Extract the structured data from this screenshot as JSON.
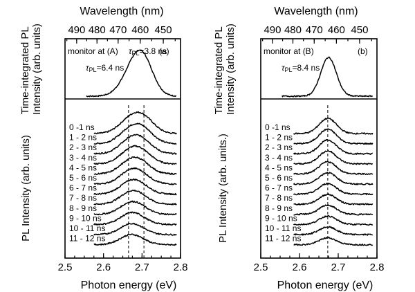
{
  "chart_data": [
    {
      "type": "line",
      "panel_label": "(a)",
      "top_axis_label": "Wavelength (nm)",
      "top_ticks": [
        490,
        480,
        470,
        460,
        450
      ],
      "bottom_axis_label": "Photon energy (eV)",
      "bottom_ticks": [
        2.5,
        2.6,
        2.7,
        2.8
      ],
      "xlim": [
        2.5,
        2.8
      ],
      "upper": {
        "ylabel": "Time-integrated PL Intensity (arb. units)",
        "monitor_label": "monitor at (A)",
        "annotations": [
          {
            "text": "τPL=3.8 ns",
            "tau": "τ",
            "sub": "PL",
            "rest": "=3.8 ns"
          },
          {
            "text": "τPL=6.4 ns",
            "tau": "τ",
            "sub": "PL",
            "rest": "=6.4 ns"
          }
        ],
        "peaks": [
          {
            "center": 2.675,
            "amp": 0.55,
            "width": 0.03
          },
          {
            "center": 2.703,
            "amp": 0.78,
            "width": 0.027
          }
        ]
      },
      "lower": {
        "ylabel": "PL Intensity (arb. units)",
        "dashed_lines_x": [
          2.665,
          2.705
        ],
        "time_windows": [
          "0 -1 ns",
          "1 - 2 ns",
          "2 - 3 ns",
          "3 - 4 ns",
          "4 - 5 ns",
          "5 - 6 ns",
          "6 - 7 ns",
          "7 - 8 ns",
          "8 - 9 ns",
          "9 - 10 ns",
          "10 - 11 ns",
          "11 - 12 ns"
        ]
      }
    },
    {
      "type": "line",
      "panel_label": "(b)",
      "top_axis_label": "Wavelength (nm)",
      "top_ticks": [
        490,
        480,
        470,
        460,
        450
      ],
      "bottom_axis_label": "Photon energy (eV)",
      "bottom_ticks": [
        2.5,
        2.6,
        2.7,
        2.8
      ],
      "xlim": [
        2.5,
        2.8
      ],
      "upper": {
        "ylabel": "Time-integrated PL Intensity (arb. units)",
        "monitor_label": "monitor at (B)",
        "annotations": [
          {
            "text": "τPL=8.4 ns",
            "tau": "τ",
            "sub": "PL",
            "rest": "=8.4 ns"
          }
        ],
        "peaks": [
          {
            "center": 2.675,
            "amp": 1.0,
            "width": 0.02
          }
        ]
      },
      "lower": {
        "ylabel": "PL Intensity (arb. units.)",
        "dashed_lines_x": [
          2.673
        ],
        "time_windows": [
          "0 -1 ns",
          "1 - 2 ns",
          "2 - 3 ns",
          "3 - 4 ns",
          "4 - 5 ns",
          "5 - 6 ns",
          "6 - 7 ns",
          "7 - 8 ns",
          "8 - 9 ns",
          "9 - 10 ns",
          "10 - 11 ns",
          "11 - 12 ns"
        ]
      }
    }
  ]
}
